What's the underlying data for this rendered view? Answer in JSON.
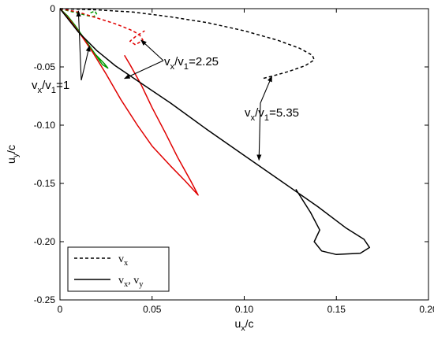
{
  "chart_data": {
    "type": "line",
    "xlabel": "u_x/c",
    "ylabel": "u_y/c",
    "xlim": [
      0,
      0.2
    ],
    "ylim": [
      -0.25,
      0
    ],
    "xticks": [
      0,
      0.05,
      0.1,
      0.15,
      0.2
    ],
    "xtick_labels": [
      "0",
      "0.05",
      "0.10",
      "0.15",
      "0.20"
    ],
    "yticks": [
      0,
      -0.05,
      -0.1,
      -0.15,
      -0.2,
      -0.25
    ],
    "ytick_labels": [
      "0",
      "-0.05",
      "-0.10",
      "-0.15",
      "-0.20",
      "-0.25"
    ],
    "grid": false,
    "legend": {
      "placement": "bottom-left",
      "entries": [
        {
          "label": "v_x",
          "style": "dashed"
        },
        {
          "label": "v_x, v_y",
          "style": "solid"
        }
      ]
    },
    "series": [
      {
        "id": "green-dashed",
        "color": "#009900",
        "style": "dashed",
        "points": [
          [
            0,
            0
          ],
          [
            0.005,
            -0.002
          ],
          [
            0.01,
            -0.004
          ],
          [
            0.015,
            -0.006
          ],
          [
            0.018,
            -0.007
          ],
          [
            0.02,
            -0.005
          ],
          [
            0.019,
            -0.002
          ],
          [
            0.016,
            -0.004
          ]
        ]
      },
      {
        "id": "green-solid",
        "color": "#009900",
        "style": "solid",
        "points": [
          [
            0,
            0
          ],
          [
            0.004,
            -0.006
          ],
          [
            0.008,
            -0.014
          ],
          [
            0.012,
            -0.023
          ],
          [
            0.016,
            -0.032
          ],
          [
            0.02,
            -0.041
          ],
          [
            0.023,
            -0.048
          ],
          [
            0.026,
            -0.051
          ],
          [
            0.024,
            -0.047
          ],
          [
            0.019,
            -0.039
          ],
          [
            0.015,
            -0.031
          ]
        ]
      },
      {
        "id": "red-dashed",
        "color": "#e00000",
        "style": "dashed",
        "points": [
          [
            0,
            0
          ],
          [
            0.01,
            -0.003
          ],
          [
            0.02,
            -0.008
          ],
          [
            0.03,
            -0.013
          ],
          [
            0.038,
            -0.018
          ],
          [
            0.043,
            -0.022
          ],
          [
            0.045,
            -0.027
          ],
          [
            0.041,
            -0.031
          ],
          [
            0.038,
            -0.028
          ],
          [
            0.041,
            -0.024
          ],
          [
            0.046,
            -0.019
          ]
        ]
      },
      {
        "id": "red-solid",
        "color": "#e00000",
        "style": "solid",
        "points": [
          [
            0,
            0
          ],
          [
            0.006,
            -0.011
          ],
          [
            0.012,
            -0.024
          ],
          [
            0.018,
            -0.038
          ],
          [
            0.025,
            -0.056
          ],
          [
            0.033,
            -0.078
          ],
          [
            0.042,
            -0.1
          ],
          [
            0.05,
            -0.118
          ],
          [
            0.06,
            -0.135
          ],
          [
            0.068,
            -0.148
          ],
          [
            0.075,
            -0.16
          ],
          [
            0.071,
            -0.148
          ],
          [
            0.064,
            -0.128
          ],
          [
            0.057,
            -0.106
          ],
          [
            0.05,
            -0.085
          ],
          [
            0.044,
            -0.065
          ],
          [
            0.038,
            -0.048
          ],
          [
            0.035,
            -0.04
          ]
        ]
      },
      {
        "id": "black-dashed",
        "color": "#000000",
        "style": "dashed",
        "points": [
          [
            0,
            0
          ],
          [
            0.02,
            -0.001
          ],
          [
            0.04,
            -0.003
          ],
          [
            0.06,
            -0.007
          ],
          [
            0.08,
            -0.012
          ],
          [
            0.1,
            -0.019
          ],
          [
            0.118,
            -0.027
          ],
          [
            0.13,
            -0.034
          ],
          [
            0.137,
            -0.04
          ],
          [
            0.138,
            -0.044
          ],
          [
            0.133,
            -0.049
          ],
          [
            0.124,
            -0.054
          ],
          [
            0.115,
            -0.058
          ],
          [
            0.11,
            -0.06
          ]
        ]
      },
      {
        "id": "black-solid",
        "color": "#000000",
        "style": "solid",
        "points": [
          [
            0,
            0
          ],
          [
            0.01,
            -0.02
          ],
          [
            0.02,
            -0.036
          ],
          [
            0.03,
            -0.049
          ],
          [
            0.045,
            -0.065
          ],
          [
            0.06,
            -0.081
          ],
          [
            0.08,
            -0.104
          ],
          [
            0.1,
            -0.126
          ],
          [
            0.12,
            -0.148
          ],
          [
            0.14,
            -0.17
          ],
          [
            0.155,
            -0.188
          ],
          [
            0.165,
            -0.198
          ],
          [
            0.168,
            -0.205
          ],
          [
            0.163,
            -0.21
          ],
          [
            0.15,
            -0.211
          ],
          [
            0.142,
            -0.208
          ],
          [
            0.138,
            -0.2
          ],
          [
            0.141,
            -0.19
          ],
          [
            0.136,
            -0.175
          ],
          [
            0.128,
            -0.155
          ]
        ]
      }
    ],
    "annotations": [
      {
        "text": "v_x/v_1=1",
        "pointer_targets": [
          [
            0.01,
            -0.002
          ],
          [
            0.016,
            -0.032
          ]
        ]
      },
      {
        "text": "v_x/v_1=2.25",
        "pointer_targets": [
          [
            0.044,
            -0.027
          ],
          [
            0.035,
            -0.06
          ]
        ]
      },
      {
        "text": "v_x/v_1=5.35",
        "pointer_targets": [
          [
            0.115,
            -0.058
          ],
          [
            0.108,
            -0.13
          ]
        ]
      }
    ]
  }
}
